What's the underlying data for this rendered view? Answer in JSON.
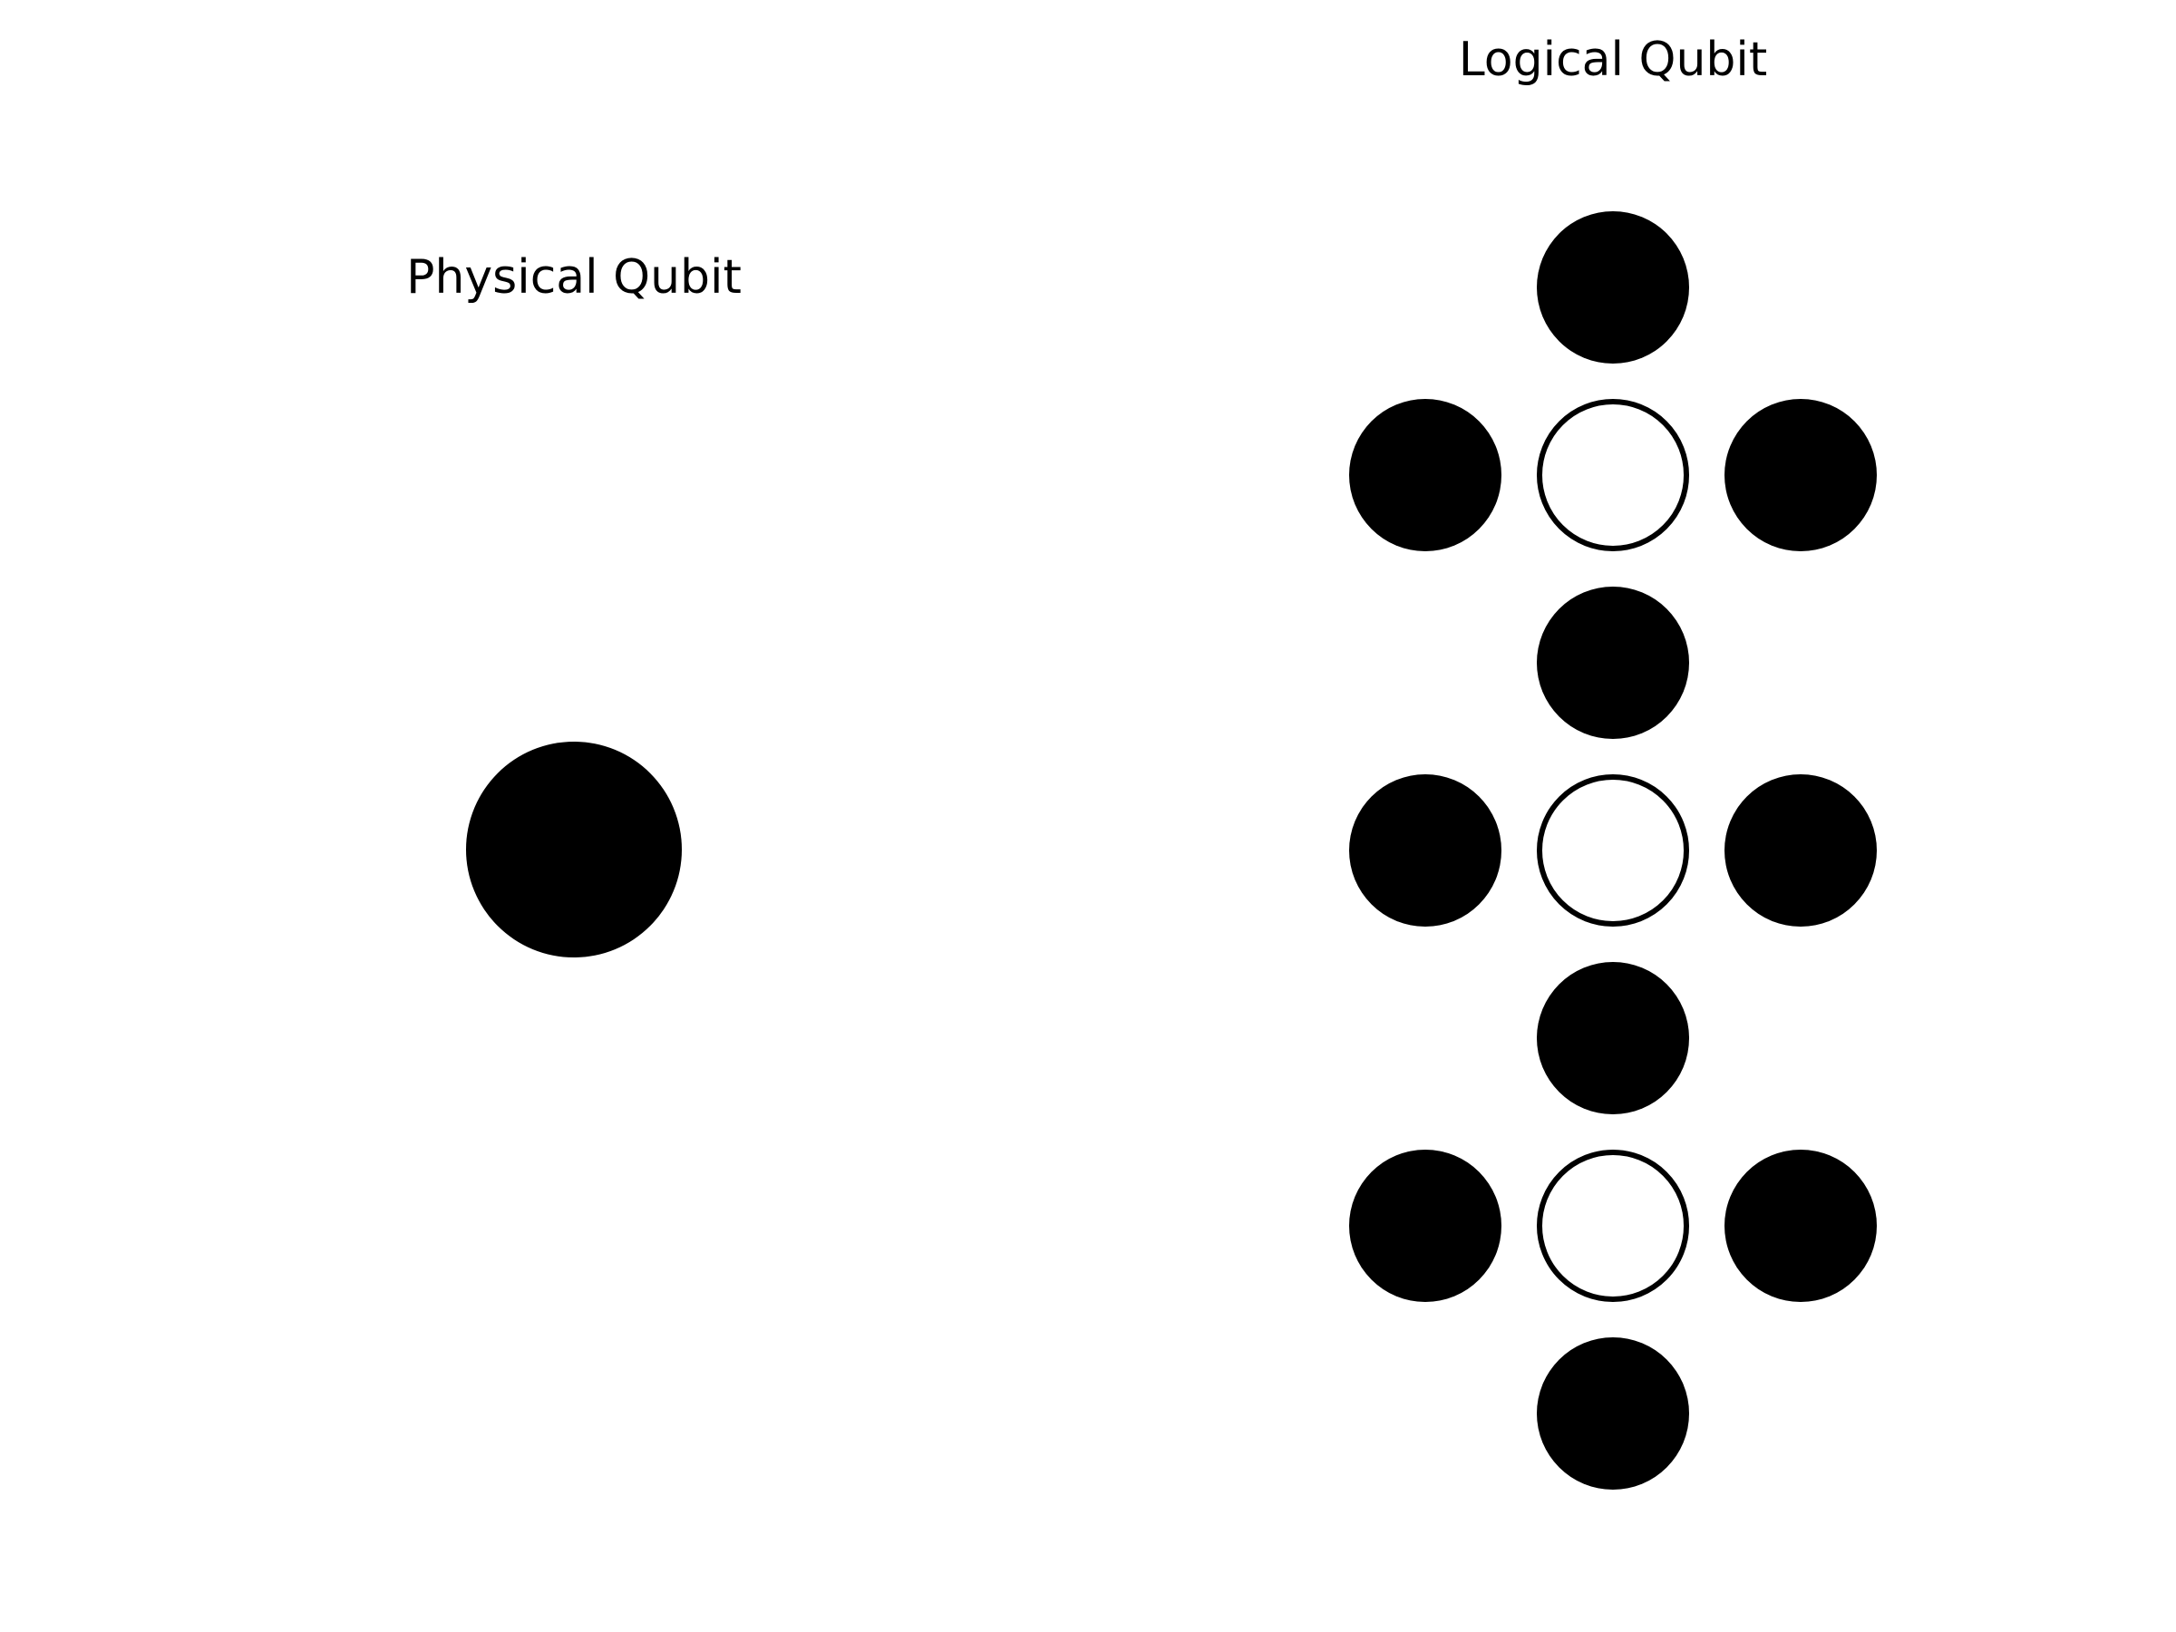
{
  "diagram": {
    "physical_label": "Physical Qubit",
    "logical_label": "Logical Qubit",
    "logical_layout": [
      [
        "empty",
        "data",
        "empty"
      ],
      [
        "data",
        "ancilla",
        "data"
      ],
      [
        "empty",
        "data",
        "empty"
      ],
      [
        "data",
        "ancilla",
        "data"
      ],
      [
        "empty",
        "data",
        "empty"
      ],
      [
        "data",
        "ancilla",
        "data"
      ],
      [
        "empty",
        "data",
        "empty"
      ]
    ],
    "colors": {
      "data_fill": "#000000",
      "ancilla_fill": "#ffffff",
      "outline": "#000000"
    }
  }
}
